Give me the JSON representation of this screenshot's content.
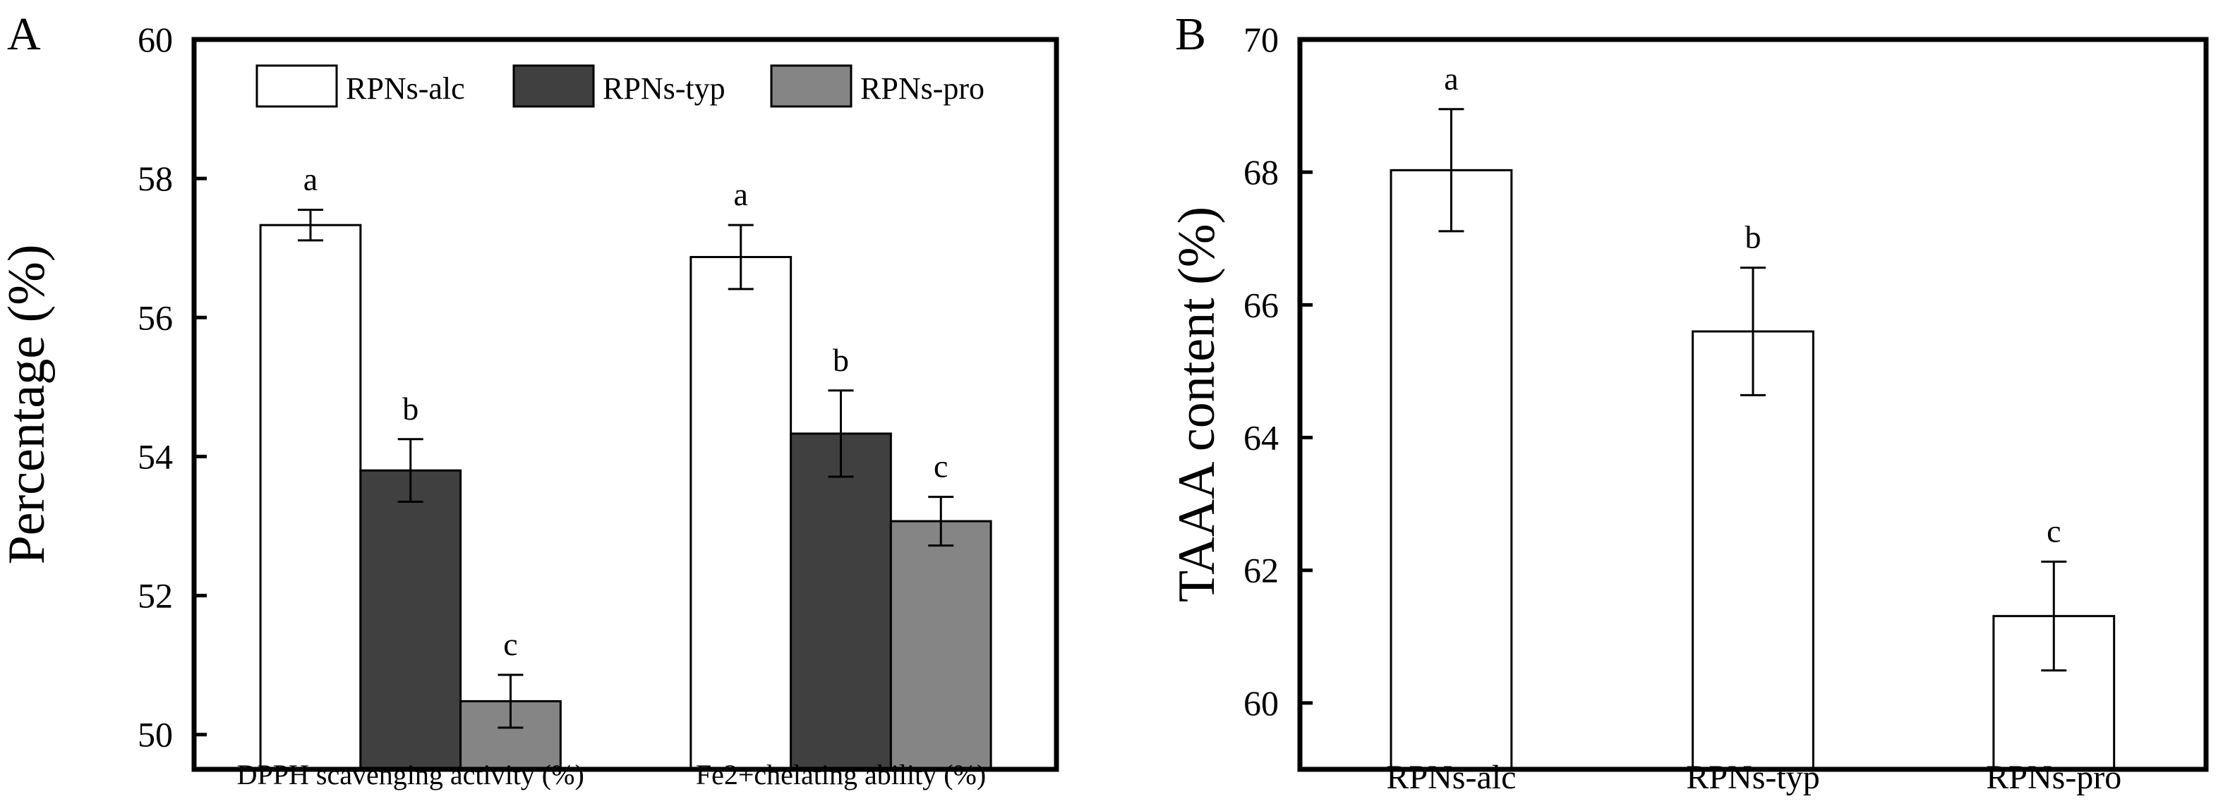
{
  "chart_data": [
    {
      "type": "bar",
      "panel_label": "A",
      "title": "",
      "xlabel": "",
      "ylabel": "Percentage (%)",
      "ylim": [
        49.5,
        60
      ],
      "yticks": [
        50,
        52,
        54,
        56,
        58,
        60
      ],
      "categories": [
        "DPPH scavenging activity (%)",
        "Fe2+chelating ability (%)"
      ],
      "legend_position": "top",
      "series": [
        {
          "name": "RPNs-alc",
          "color": "#ffffff",
          "values": [
            57.33,
            56.87
          ],
          "errors": [
            0.22,
            0.46
          ],
          "letters": [
            "a",
            "a"
          ]
        },
        {
          "name": "RPNs-typ",
          "color": "#404040",
          "values": [
            53.8,
            54.33
          ],
          "errors": [
            0.45,
            0.62
          ],
          "letters": [
            "b",
            "b"
          ]
        },
        {
          "name": "RPNs-pro",
          "color": "#858585",
          "values": [
            50.48,
            53.07
          ],
          "errors": [
            0.38,
            0.35
          ],
          "letters": [
            "c",
            "c"
          ]
        }
      ]
    },
    {
      "type": "bar",
      "panel_label": "B",
      "title": "",
      "xlabel": "",
      "ylabel": "TAAA content (%)",
      "ylim": [
        59,
        70
      ],
      "yticks": [
        60,
        62,
        64,
        66,
        68,
        70
      ],
      "categories": [
        "RPNs-alc",
        "RPNs-typ",
        "RPNs-pro"
      ],
      "values": [
        68.03,
        65.6,
        61.31
      ],
      "errors": [
        0.92,
        0.96,
        0.82
      ],
      "letters": [
        "a",
        "b",
        "c"
      ],
      "color": "#ffffff"
    }
  ]
}
